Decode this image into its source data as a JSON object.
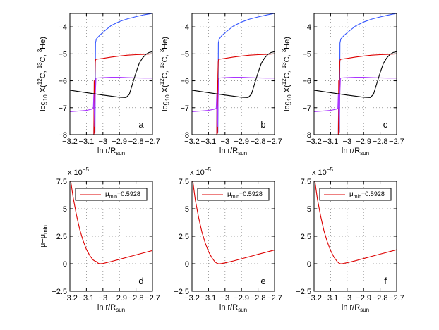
{
  "chart_data": [
    {
      "type": "line",
      "panel": "a",
      "xlabel": "ln r/R",
      "xlabel_sub": "sun",
      "ylabel": "log",
      "ylabel_sub": "10",
      "ylabel_rest_parts": [
        " X(",
        "12",
        "C, ",
        "13",
        "C, ",
        "3",
        "He)"
      ],
      "xlim": [
        -3.2,
        -2.7
      ],
      "ylim": [
        -8,
        -3.5
      ],
      "x_ticks": [
        -3.2,
        -3.1,
        -3.0,
        -2.9,
        -2.8,
        -2.7
      ],
      "x_tick_labels": [
        "−3.2",
        "−3.1",
        "−3",
        "−2.9",
        "−2.8",
        "−2.7"
      ],
      "y_ticks": [
        -8,
        -7,
        -6,
        -5,
        -4
      ],
      "y_tick_labels": [
        "−8",
        "−7",
        "−6",
        "−5",
        "−4"
      ],
      "grid": true,
      "series": [
        {
          "name": "3He",
          "color": "#3355ff",
          "x": [
            -3.2,
            -3.12,
            -3.055,
            -3.054,
            -3.052,
            -3.05,
            -3.048,
            -3.046,
            -3.045,
            -3.04,
            -3.02,
            -3.0,
            -2.95,
            -2.9,
            -2.85,
            -2.8,
            -2.75,
            -2.7
          ],
          "y": [
            -8.0,
            -8.0,
            -8.0,
            -7.0,
            -7.95,
            -6.5,
            -7.9,
            -5.6,
            -4.6,
            -4.45,
            -4.32,
            -4.2,
            -3.95,
            -3.8,
            -3.7,
            -3.62,
            -3.55,
            -3.5
          ]
        },
        {
          "name": "12C",
          "color": "#dd0000",
          "x": [
            -3.2,
            -3.12,
            -3.055,
            -3.053,
            -3.05,
            -3.048,
            -3.046,
            -3.044,
            -3.04,
            -3.0,
            -2.95,
            -2.9,
            -2.85,
            -2.8,
            -2.75,
            -2.7
          ],
          "y": [
            -8.0,
            -8.0,
            -8.0,
            -6.0,
            -7.95,
            -5.8,
            -5.3,
            -5.22,
            -5.2,
            -5.17,
            -5.12,
            -5.08,
            -5.05,
            -5.03,
            -5.02,
            -5.0
          ]
        },
        {
          "name": "13C",
          "color": "#aa33ff",
          "x": [
            -3.2,
            -3.1,
            -3.065,
            -3.058,
            -3.055,
            -3.05,
            -3.046,
            -3.042,
            -3.0,
            -2.95,
            -2.9,
            -2.85,
            -2.8,
            -2.75,
            -2.7
          ],
          "y": [
            -7.15,
            -7.1,
            -7.05,
            -7.02,
            -6.5,
            -7.7,
            -6.5,
            -5.9,
            -5.88,
            -5.87,
            -5.87,
            -5.88,
            -5.89,
            -5.9,
            -5.9
          ]
        },
        {
          "name": "black",
          "color": "#000000",
          "x": [
            -3.2,
            -3.1,
            -3.0,
            -2.9,
            -2.86,
            -2.84,
            -2.82,
            -2.8,
            -2.78,
            -2.76,
            -2.74,
            -2.72,
            -2.7
          ],
          "y": [
            -6.35,
            -6.44,
            -6.53,
            -6.61,
            -6.62,
            -6.5,
            -6.1,
            -5.7,
            -5.35,
            -5.15,
            -5.02,
            -4.95,
            -4.92
          ]
        }
      ]
    },
    {
      "type": "line",
      "panel": "b",
      "xlabel": "ln r/R",
      "xlabel_sub": "sun",
      "ylabel": "log",
      "ylabel_sub": "10",
      "ylabel_rest_parts": [
        " X(",
        "12",
        "C, ",
        "13",
        "C, ",
        "3",
        "He)"
      ],
      "xlim": [
        -3.2,
        -2.7
      ],
      "ylim": [
        -8,
        -3.5
      ],
      "x_ticks": [
        -3.2,
        -3.1,
        -3.0,
        -2.9,
        -2.8,
        -2.7
      ],
      "x_tick_labels": [
        "−3.2",
        "−3.1",
        "−3",
        "−2.9",
        "−2.8",
        "−2.7"
      ],
      "y_ticks": [
        -8,
        -7,
        -6,
        -5,
        -4
      ],
      "y_tick_labels": [
        "−8",
        "−7",
        "−6",
        "−5",
        "−4"
      ],
      "grid": true,
      "series": [
        {
          "name": "3He",
          "color": "#3355ff",
          "x": [
            -3.2,
            -3.12,
            -3.05,
            -3.049,
            -3.047,
            -3.045,
            -3.043,
            -3.041,
            -3.04,
            -3.035,
            -3.02,
            -3.0,
            -2.95,
            -2.9,
            -2.85,
            -2.8,
            -2.75,
            -2.7
          ],
          "y": [
            -8.0,
            -8.0,
            -8.0,
            -7.0,
            -7.95,
            -6.5,
            -7.9,
            -5.6,
            -4.6,
            -4.45,
            -4.33,
            -4.22,
            -3.97,
            -3.82,
            -3.71,
            -3.63,
            -3.56,
            -3.5
          ]
        },
        {
          "name": "12C",
          "color": "#dd0000",
          "x": [
            -3.2,
            -3.12,
            -3.05,
            -3.048,
            -3.045,
            -3.043,
            -3.041,
            -3.039,
            -3.035,
            -3.0,
            -2.95,
            -2.9,
            -2.85,
            -2.8,
            -2.75,
            -2.7
          ],
          "y": [
            -8.0,
            -8.0,
            -8.0,
            -6.0,
            -7.95,
            -5.8,
            -5.3,
            -5.22,
            -5.2,
            -5.17,
            -5.12,
            -5.08,
            -5.05,
            -5.03,
            -5.02,
            -5.0
          ]
        },
        {
          "name": "13C",
          "color": "#aa33ff",
          "x": [
            -3.2,
            -3.1,
            -3.06,
            -3.053,
            -3.05,
            -3.045,
            -3.041,
            -3.037,
            -3.0,
            -2.95,
            -2.9,
            -2.85,
            -2.8,
            -2.75,
            -2.7
          ],
          "y": [
            -7.15,
            -7.1,
            -7.05,
            -7.02,
            -6.5,
            -7.7,
            -6.5,
            -5.9,
            -5.88,
            -5.87,
            -5.87,
            -5.88,
            -5.89,
            -5.9,
            -5.9
          ]
        },
        {
          "name": "black",
          "color": "#000000",
          "x": [
            -3.2,
            -3.1,
            -3.0,
            -2.9,
            -2.86,
            -2.84,
            -2.82,
            -2.8,
            -2.78,
            -2.76,
            -2.74,
            -2.72,
            -2.7
          ],
          "y": [
            -6.35,
            -6.44,
            -6.53,
            -6.61,
            -6.62,
            -6.5,
            -6.1,
            -5.7,
            -5.35,
            -5.15,
            -5.02,
            -4.95,
            -4.92
          ]
        }
      ]
    },
    {
      "type": "line",
      "panel": "c",
      "xlabel": "ln r/R",
      "xlabel_sub": "sun",
      "ylabel": "log",
      "ylabel_sub": "10",
      "ylabel_rest_parts": [
        " X(",
        "12",
        "C, ",
        "13",
        "C, ",
        "3",
        "He)"
      ],
      "xlim": [
        -3.2,
        -2.7
      ],
      "ylim": [
        -8,
        -3.5
      ],
      "x_ticks": [
        -3.2,
        -3.1,
        -3.0,
        -2.9,
        -2.8,
        -2.7
      ],
      "x_tick_labels": [
        "−3.2",
        "−3.1",
        "−3",
        "−2.9",
        "−2.8",
        "−2.7"
      ],
      "y_ticks": [
        -8,
        -7,
        -6,
        -5,
        -4
      ],
      "y_tick_labels": [
        "−8",
        "−7",
        "−6",
        "−5",
        "−4"
      ],
      "grid": true,
      "series": [
        {
          "name": "3He",
          "color": "#3355ff",
          "x": [
            -3.2,
            -3.12,
            -3.053,
            -3.052,
            -3.05,
            -3.048,
            -3.046,
            -3.044,
            -3.043,
            -3.038,
            -3.02,
            -3.0,
            -2.95,
            -2.9,
            -2.85,
            -2.8,
            -2.75,
            -2.7
          ],
          "y": [
            -8.0,
            -8.0,
            -8.0,
            -7.0,
            -7.95,
            -6.5,
            -7.9,
            -5.6,
            -4.6,
            -4.45,
            -4.33,
            -4.22,
            -3.97,
            -3.82,
            -3.71,
            -3.63,
            -3.56,
            -3.5
          ]
        },
        {
          "name": "12C",
          "color": "#dd0000",
          "x": [
            -3.2,
            -3.12,
            -3.053,
            -3.051,
            -3.048,
            -3.046,
            -3.044,
            -3.042,
            -3.038,
            -3.0,
            -2.95,
            -2.9,
            -2.85,
            -2.8,
            -2.75,
            -2.7
          ],
          "y": [
            -8.0,
            -8.0,
            -8.0,
            -6.0,
            -7.95,
            -5.8,
            -5.3,
            -5.22,
            -5.2,
            -5.17,
            -5.12,
            -5.08,
            -5.05,
            -5.03,
            -5.02,
            -5.0
          ]
        },
        {
          "name": "13C",
          "color": "#aa33ff",
          "x": [
            -3.2,
            -3.1,
            -3.063,
            -3.056,
            -3.053,
            -3.048,
            -3.044,
            -3.04,
            -3.0,
            -2.95,
            -2.9,
            -2.85,
            -2.8,
            -2.75,
            -2.7
          ],
          "y": [
            -7.15,
            -7.1,
            -7.05,
            -7.02,
            -6.5,
            -7.7,
            -6.5,
            -5.9,
            -5.88,
            -5.87,
            -5.87,
            -5.88,
            -5.89,
            -5.9,
            -5.9
          ]
        },
        {
          "name": "black",
          "color": "#000000",
          "x": [
            -3.2,
            -3.1,
            -3.0,
            -2.9,
            -2.86,
            -2.84,
            -2.82,
            -2.8,
            -2.78,
            -2.76,
            -2.74,
            -2.72,
            -2.7
          ],
          "y": [
            -6.35,
            -6.44,
            -6.53,
            -6.61,
            -6.62,
            -6.5,
            -6.1,
            -5.7,
            -5.35,
            -5.15,
            -5.02,
            -4.95,
            -4.92
          ]
        }
      ]
    },
    {
      "type": "line",
      "panel": "d",
      "xlabel": "ln r/R",
      "xlabel_sub": "sun",
      "ylabel": "μ−μ",
      "ylabel_sub": "min",
      "ylabel_rest_parts": [],
      "multiplier": "x 10",
      "multiplier_exp": "−5",
      "xlim": [
        -3.2,
        -2.7
      ],
      "ylim": [
        -2.5,
        7.5
      ],
      "x_ticks": [
        -3.2,
        -3.1,
        -3.0,
        -2.9,
        -2.8,
        -2.7
      ],
      "x_tick_labels": [
        "−3.2",
        "−3.1",
        "−3",
        "−2.9",
        "−2.8",
        "−2.7"
      ],
      "y_ticks": [
        -2.5,
        0,
        2.5,
        5,
        7.5
      ],
      "y_tick_labels": [
        "−2.5",
        "0",
        "2.5",
        "5",
        "7.5"
      ],
      "grid": true,
      "legend": {
        "label": "μ",
        "sub": "min",
        "value": "=0.5928",
        "color": "#dd0000",
        "placement": "top"
      },
      "series": [
        {
          "name": "μ−μmin",
          "color": "#dd0000",
          "x": [
            -3.195,
            -3.18,
            -3.16,
            -3.14,
            -3.12,
            -3.1,
            -3.08,
            -3.06,
            -3.05,
            -3.04,
            -3.03,
            -3.02,
            -3.0,
            -2.95,
            -2.9,
            -2.85,
            -2.8,
            -2.75,
            -2.7
          ],
          "y": [
            7.5,
            6.0,
            4.4,
            3.1,
            2.1,
            1.3,
            0.75,
            0.35,
            0.25,
            0.2,
            0.05,
            0.0,
            0.02,
            0.2,
            0.4,
            0.6,
            0.8,
            1.0,
            1.2
          ]
        }
      ]
    },
    {
      "type": "line",
      "panel": "e",
      "xlabel": "ln r/R",
      "xlabel_sub": "sun",
      "ylabel": "",
      "ylabel_sub": "",
      "ylabel_rest_parts": [],
      "multiplier": "x 10",
      "multiplier_exp": "−5",
      "xlim": [
        -3.2,
        -2.7
      ],
      "ylim": [
        -2.5,
        7.5
      ],
      "x_ticks": [
        -3.2,
        -3.1,
        -3.0,
        -2.9,
        -2.8,
        -2.7
      ],
      "x_tick_labels": [
        "−3.2",
        "−3.1",
        "−3",
        "−2.9",
        "−2.8",
        "−2.7"
      ],
      "y_ticks": [
        -2.5,
        0,
        2.5,
        5,
        7.5
      ],
      "y_tick_labels": [
        "−2.5",
        "0",
        "2.5",
        "5",
        "7.5"
      ],
      "grid": true,
      "legend": {
        "label": "μ",
        "sub": "min",
        "value": "=0.5928",
        "color": "#dd0000",
        "placement": "top"
      },
      "series": [
        {
          "name": "μ−μmin",
          "color": "#dd0000",
          "x": [
            -3.195,
            -3.18,
            -3.16,
            -3.14,
            -3.12,
            -3.1,
            -3.08,
            -3.06,
            -3.05,
            -3.04,
            -3.03,
            -3.02,
            -3.0,
            -2.95,
            -2.9,
            -2.85,
            -2.8,
            -2.75,
            -2.7
          ],
          "y": [
            7.5,
            5.8,
            4.2,
            2.9,
            1.9,
            1.1,
            0.55,
            0.15,
            0.05,
            0.0,
            0.0,
            0.02,
            0.08,
            0.25,
            0.45,
            0.65,
            0.85,
            1.05,
            1.25
          ]
        }
      ]
    },
    {
      "type": "line",
      "panel": "f",
      "xlabel": "ln r/R",
      "xlabel_sub": "sun",
      "ylabel": "",
      "ylabel_sub": "",
      "ylabel_rest_parts": [],
      "multiplier": "x 10",
      "multiplier_exp": "−5",
      "xlim": [
        -3.2,
        -2.7
      ],
      "ylim": [
        -2.5,
        7.5
      ],
      "x_ticks": [
        -3.2,
        -3.1,
        -3.0,
        -2.9,
        -2.8,
        -2.7
      ],
      "x_tick_labels": [
        "−3.2",
        "−3.1",
        "−3",
        "−2.9",
        "−2.8",
        "−2.7"
      ],
      "y_ticks": [
        -2.5,
        0,
        2.5,
        5,
        7.5
      ],
      "y_tick_labels": [
        "−2.5",
        "0",
        "2.5",
        "5",
        "7.5"
      ],
      "grid": true,
      "legend": {
        "label": "μ",
        "sub": "min",
        "value": "=0.5928",
        "color": "#dd0000",
        "placement": "top"
      },
      "series": [
        {
          "name": "μ−μmin",
          "color": "#dd0000",
          "x": [
            -3.195,
            -3.18,
            -3.16,
            -3.14,
            -3.12,
            -3.1,
            -3.08,
            -3.06,
            -3.05,
            -3.04,
            -3.03,
            -3.02,
            -3.0,
            -2.95,
            -2.9,
            -2.85,
            -2.8,
            -2.75,
            -2.7
          ],
          "y": [
            7.5,
            5.9,
            4.3,
            3.0,
            2.0,
            1.2,
            0.6,
            0.2,
            0.06,
            0.0,
            0.0,
            0.03,
            0.09,
            0.27,
            0.47,
            0.67,
            0.87,
            1.07,
            1.27
          ]
        }
      ]
    }
  ]
}
